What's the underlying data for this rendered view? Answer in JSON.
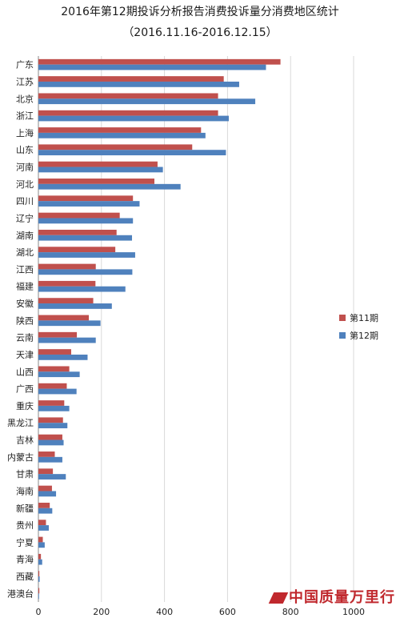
{
  "chart_data": {
    "type": "bar",
    "orientation": "horizontal",
    "title": "2016年第12期投诉分析报告消费投诉量分消费地区统计",
    "subtitle": "（2016.11.16-2016.12.15）",
    "categories": [
      "广东",
      "江苏",
      "北京",
      "浙江",
      "上海",
      "山东",
      "河南",
      "河北",
      "四川",
      "辽宁",
      "湖南",
      "湖北",
      "江西",
      "福建",
      "安徽",
      "陕西",
      "云南",
      "天津",
      "山西",
      "广西",
      "重庆",
      "黑龙江",
      "吉林",
      "内蒙古",
      "甘肃",
      "海南",
      "新疆",
      "贵州",
      "宁夏",
      "青海",
      "西藏",
      "港澳台"
    ],
    "series": [
      {
        "name": "第11期",
        "color": "#c0504d",
        "values": [
          768,
          588,
          570,
          570,
          516,
          488,
          378,
          368,
          300,
          258,
          248,
          244,
          182,
          181,
          174,
          160,
          122,
          104,
          98,
          90,
          82,
          78,
          76,
          52,
          46,
          43,
          36,
          24,
          14,
          8,
          3,
          3
        ]
      },
      {
        "name": "第12期",
        "color": "#4f81bd",
        "values": [
          722,
          637,
          688,
          604,
          530,
          595,
          395,
          451,
          321,
          300,
          297,
          307,
          298,
          276,
          233,
          197,
          182,
          156,
          131,
          121,
          98,
          92,
          80,
          76,
          87,
          56,
          44,
          33,
          20,
          12,
          4,
          2
        ]
      }
    ],
    "xlim": [
      0,
      1000
    ],
    "xticks": [
      "0",
      "200",
      "400",
      "600",
      "800",
      "1000"
    ],
    "grid": true,
    "legend_position": "right"
  },
  "watermark": "中国质量万里行"
}
